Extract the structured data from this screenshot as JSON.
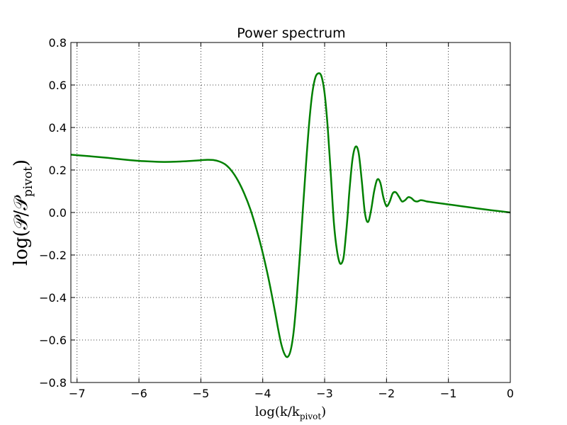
{
  "chart_data": {
    "type": "line",
    "title": "Power spectrum",
    "xlabel_main": "log(k/k",
    "xlabel_sub": "pivot",
    "xlabel_close": ")",
    "ylabel_main": "log(𝒫/𝒫",
    "ylabel_sub": "pivot",
    "ylabel_close": ")",
    "xlim": [
      -7.1,
      0
    ],
    "ylim": [
      -0.8,
      0.8
    ],
    "xticks": [
      -7,
      -6,
      -5,
      -4,
      -3,
      -2,
      -1,
      0
    ],
    "xtick_labels": [
      "−7",
      "−6",
      "−5",
      "−4",
      "−3",
      "−2",
      "−1",
      "0"
    ],
    "yticks": [
      -0.8,
      -0.6,
      -0.4,
      -0.2,
      0.0,
      0.2,
      0.4,
      0.6,
      0.8
    ],
    "ytick_labels": [
      "−0.8",
      "−0.6",
      "−0.4",
      "−0.2",
      "0.0",
      "0.2",
      "0.4",
      "0.6",
      "0.8"
    ],
    "grid": true,
    "series": [
      {
        "color": "#008000",
        "x": [
          -7.1,
          -6.8,
          -6.5,
          -6.2,
          -6.0,
          -5.8,
          -5.6,
          -5.4,
          -5.2,
          -5.0,
          -4.9,
          -4.8,
          -4.7,
          -4.6,
          -4.5,
          -4.4,
          -4.3,
          -4.2,
          -4.1,
          -4.0,
          -3.9,
          -3.8,
          -3.75,
          -3.7,
          -3.65,
          -3.6,
          -3.55,
          -3.5,
          -3.45,
          -3.4,
          -3.35,
          -3.3,
          -3.25,
          -3.2,
          -3.15,
          -3.1,
          -3.05,
          -3.0,
          -2.95,
          -2.9,
          -2.85,
          -2.8,
          -2.75,
          -2.7,
          -2.67,
          -2.63,
          -2.6,
          -2.55,
          -2.5,
          -2.45,
          -2.4,
          -2.35,
          -2.3,
          -2.25,
          -2.2,
          -2.15,
          -2.1,
          -2.05,
          -2.0,
          -1.95,
          -1.9,
          -1.85,
          -1.8,
          -1.75,
          -1.7,
          -1.65,
          -1.6,
          -1.55,
          -1.5,
          -1.45,
          -1.4,
          -1.35,
          -1.3,
          -1.2,
          -1.0,
          -0.8,
          -0.6,
          -0.4,
          -0.2,
          0.0
        ],
        "y": [
          0.272,
          0.265,
          0.257,
          0.248,
          0.243,
          0.24,
          0.238,
          0.239,
          0.242,
          0.246,
          0.248,
          0.247,
          0.24,
          0.225,
          0.195,
          0.15,
          0.09,
          0.015,
          -0.08,
          -0.19,
          -0.32,
          -0.47,
          -0.55,
          -0.62,
          -0.665,
          -0.68,
          -0.65,
          -0.56,
          -0.4,
          -0.2,
          0.02,
          0.23,
          0.42,
          0.56,
          0.635,
          0.655,
          0.64,
          0.56,
          0.4,
          0.18,
          -0.05,
          -0.18,
          -0.24,
          -0.22,
          -0.15,
          -0.02,
          0.1,
          0.25,
          0.31,
          0.28,
          0.15,
          0.0,
          -0.045,
          0.01,
          0.1,
          0.155,
          0.14,
          0.07,
          0.03,
          0.05,
          0.09,
          0.095,
          0.075,
          0.052,
          0.058,
          0.072,
          0.068,
          0.055,
          0.052,
          0.058,
          0.056,
          0.052,
          0.05,
          0.046,
          0.038,
          0.03,
          0.022,
          0.014,
          0.007,
          0.0
        ]
      }
    ]
  }
}
